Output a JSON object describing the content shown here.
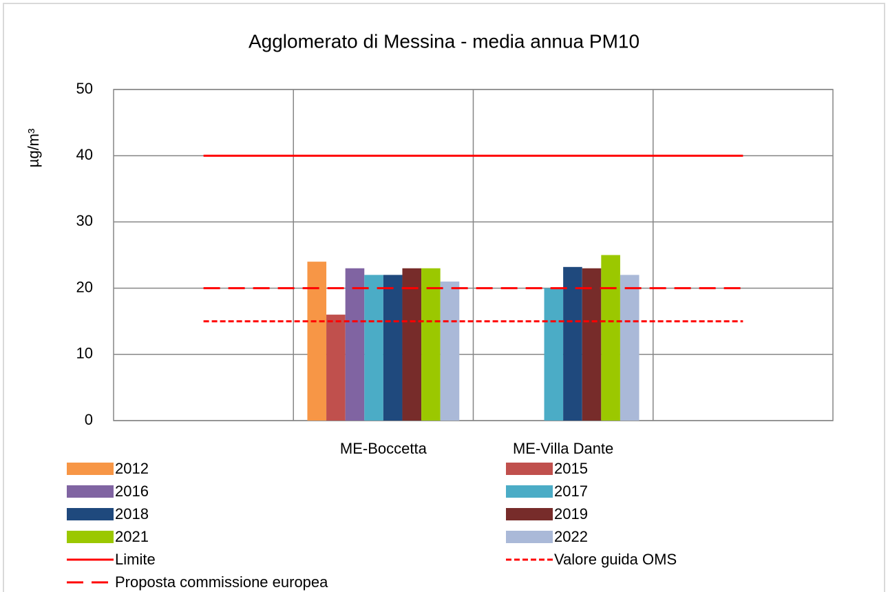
{
  "chart_data": {
    "type": "bar",
    "title": "Agglomerato di Messina - media annua PM10",
    "y_label": "µg/m³",
    "categories": [
      null,
      "ME-Boccetta",
      "ME-Villa Dante",
      null
    ],
    "ylim": [
      0,
      50
    ],
    "yticks": [
      0,
      10,
      20,
      30,
      40,
      50
    ],
    "grid": true,
    "series": [
      {
        "name": "2012",
        "color": "#f79646",
        "values": [
          null,
          24,
          null,
          null
        ]
      },
      {
        "name": "2015",
        "color": "#c0504d",
        "values": [
          null,
          16,
          null,
          null
        ]
      },
      {
        "name": "2016",
        "color": "#8064a2",
        "values": [
          null,
          23,
          null,
          null
        ]
      },
      {
        "name": "2017",
        "color": "#4bacc6",
        "values": [
          null,
          22,
          20,
          null
        ]
      },
      {
        "name": "2018",
        "color": "#1f497d",
        "values": [
          null,
          22,
          23.2,
          null
        ]
      },
      {
        "name": "2019",
        "color": "#772c2a",
        "values": [
          null,
          23,
          23,
          null
        ]
      },
      {
        "name": "2021",
        "color": "#9bc800",
        "values": [
          null,
          23,
          25,
          null
        ]
      },
      {
        "name": "2022",
        "color": "#aab9d8",
        "values": [
          null,
          21,
          22,
          null
        ]
      },
      {
        "name": "Limite",
        "type": "line",
        "dash": "solid",
        "color": "#ff0000",
        "values": [
          40,
          40,
          40,
          40
        ]
      },
      {
        "name": "Valore guida OMS",
        "type": "line",
        "dash": "short",
        "color": "#ff0000",
        "values": [
          15,
          15,
          15,
          15
        ]
      },
      {
        "name": "Proposta commissione europea",
        "type": "line",
        "dash": "long",
        "color": "#ff0000",
        "values": [
          20,
          20,
          20,
          20
        ]
      }
    ]
  }
}
